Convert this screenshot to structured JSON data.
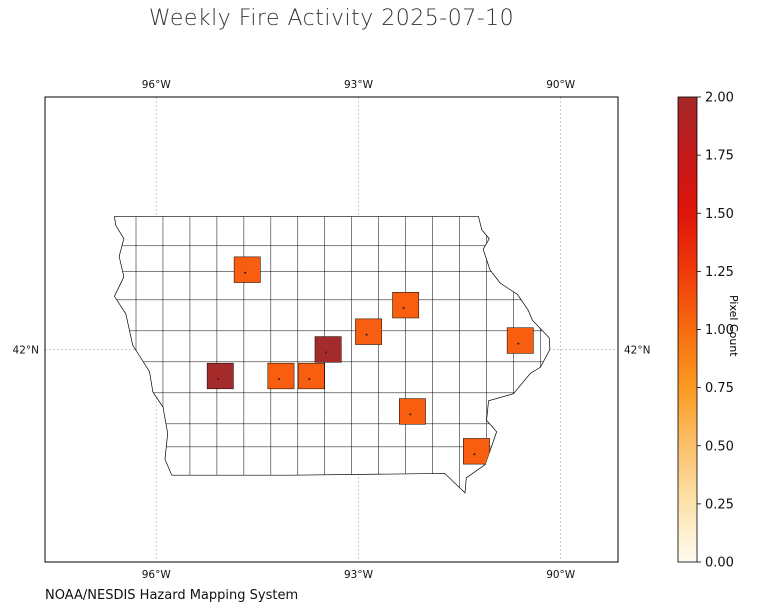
{
  "title": "Weekly Fire Activity 2025-07-10",
  "source": "NOAA/NESDIS Hazard Mapping System",
  "map": {
    "region": "Iowa",
    "lon_ticks": [
      {
        "label": "96°W",
        "lon": -96
      },
      {
        "label": "93°W",
        "lon": -93
      },
      {
        "label": "90°W",
        "lon": -90
      }
    ],
    "lat_ticks": [
      {
        "label": "42°N",
        "lat": 42
      }
    ],
    "extent": {
      "lon_min": -97.65,
      "lon_max": -89.15,
      "lat_min": 39.6,
      "lat_max": 44.85
    },
    "gridlines": true,
    "county_fill_default": "#ffffff",
    "county_edge_color": "#000000"
  },
  "colorbar": {
    "label": "Pixel Count",
    "min": 0.0,
    "max": 2.0,
    "ticks": [
      "0.00",
      "0.25",
      "0.50",
      "0.75",
      "1.00",
      "1.25",
      "1.50",
      "1.75",
      "2.00"
    ],
    "colormap": [
      "#fffbf0",
      "#fde3ad",
      "#fcc06a",
      "#fb9a22",
      "#f76b0f",
      "#f03a0a",
      "#e0150a",
      "#c4191b",
      "#a52a2a"
    ]
  },
  "chart_data": {
    "type": "heatmap",
    "title": "Weekly Fire Activity 2025-07-10",
    "colorbar_label": "Pixel Count",
    "range": [
      0,
      2
    ],
    "highlighted_counties": [
      {
        "pixel_count": 1,
        "color": "#f75e10",
        "lon": -94.65,
        "lat": 42.9
      },
      {
        "pixel_count": 1,
        "color": "#f75e10",
        "lon": -92.3,
        "lat": 42.5
      },
      {
        "pixel_count": 1,
        "color": "#f75e10",
        "lon": -92.85,
        "lat": 42.2
      },
      {
        "pixel_count": 2,
        "color": "#a52a2a",
        "lon": -93.45,
        "lat": 42.0
      },
      {
        "pixel_count": 1,
        "color": "#f75e10",
        "lon": -90.6,
        "lat": 42.1
      },
      {
        "pixel_count": 2,
        "color": "#a52a2a",
        "lon": -95.05,
        "lat": 41.7
      },
      {
        "pixel_count": 1,
        "color": "#f75e10",
        "lon": -94.15,
        "lat": 41.7
      },
      {
        "pixel_count": 1,
        "color": "#f75e10",
        "lon": -93.7,
        "lat": 41.7
      },
      {
        "pixel_count": 1,
        "color": "#f75e10",
        "lon": -92.2,
        "lat": 41.3
      },
      {
        "pixel_count": 1,
        "color": "#f75e10",
        "lon": -91.25,
        "lat": 40.85
      }
    ]
  }
}
